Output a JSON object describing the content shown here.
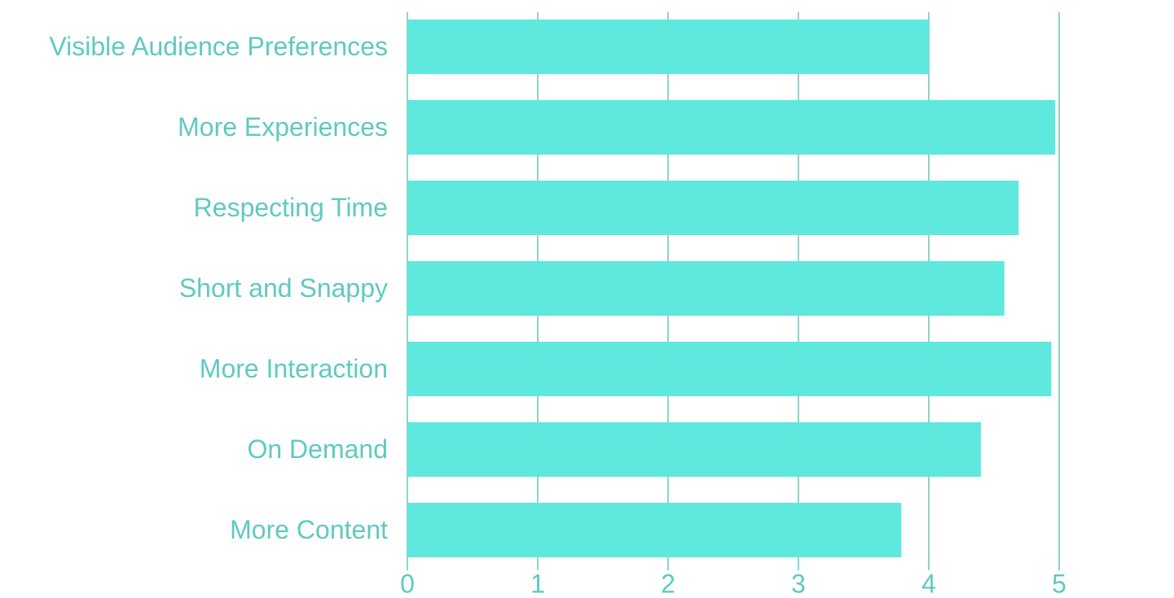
{
  "chart_data": {
    "type": "bar",
    "orientation": "horizontal",
    "categories": [
      "Visible Audience Preferences",
      "More Experiences",
      "Respecting Time",
      "Short and Snappy",
      "More Interaction",
      "On Demand",
      "More Content"
    ],
    "values": [
      4.0,
      4.97,
      4.69,
      4.58,
      4.94,
      4.4,
      3.79
    ],
    "color": "#5ee8de",
    "xlim": [
      0,
      5
    ],
    "xticks": [
      0,
      1,
      2,
      3,
      4,
      5
    ],
    "grid": true
  }
}
